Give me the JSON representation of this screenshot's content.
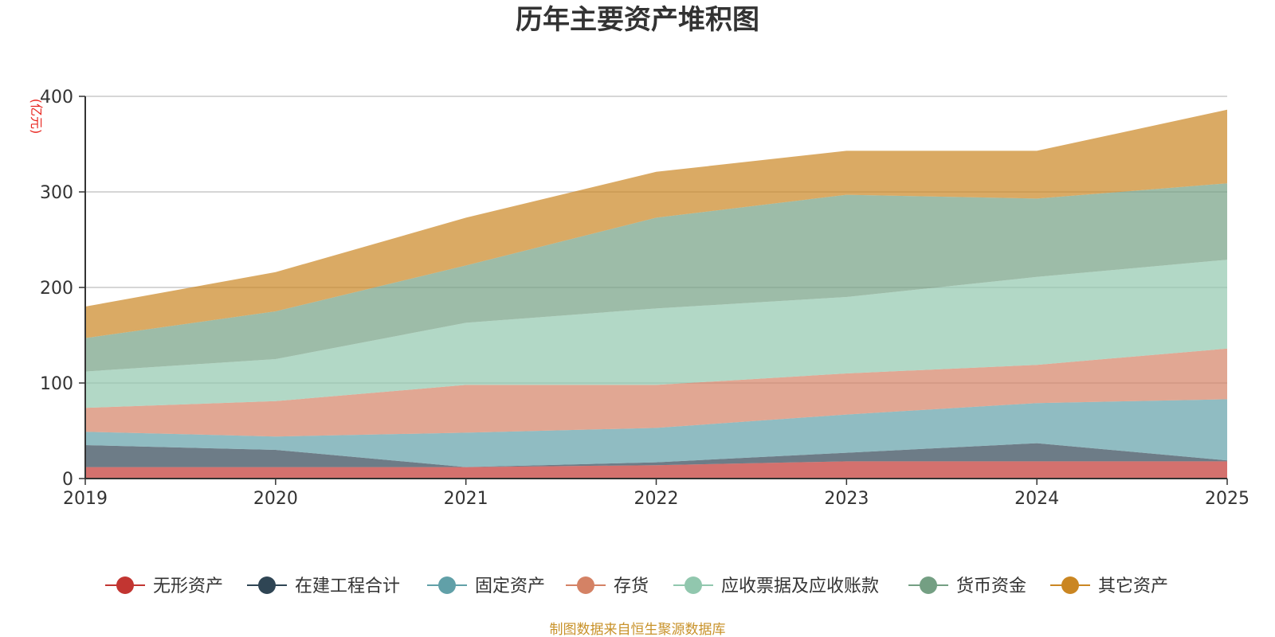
{
  "chart_data": {
    "type": "area",
    "stacked": true,
    "title": "历年主要资产堆积图",
    "unit_label": "(亿元)",
    "x": [
      "2019",
      "2020",
      "2021",
      "2022",
      "2023",
      "2024",
      "2025"
    ],
    "ylim": [
      0,
      400
    ],
    "yticks": [
      "0",
      "100",
      "200",
      "300",
      "400"
    ],
    "grid": true,
    "legend_position": "bottom",
    "series": [
      {
        "name": "无形资产",
        "color": "#c23531",
        "values": [
          12,
          12,
          12,
          14,
          18,
          18,
          18
        ]
      },
      {
        "name": "在建工程合计",
        "color": "#2f4554",
        "values": [
          23,
          18,
          0,
          3,
          9,
          19,
          1
        ]
      },
      {
        "name": "固定资产",
        "color": "#61a0a8",
        "values": [
          14,
          14,
          36,
          36,
          40,
          42,
          64
        ]
      },
      {
        "name": "存货",
        "color": "#d48265",
        "values": [
          25,
          37,
          50,
          45,
          43,
          40,
          53
        ]
      },
      {
        "name": "应收票据及应收账款",
        "color": "#91c7ae",
        "values": [
          38,
          44,
          65,
          80,
          80,
          92,
          93
        ]
      },
      {
        "name": "货币资金",
        "color": "#749f83",
        "values": [
          35,
          50,
          60,
          95,
          107,
          82,
          80
        ]
      },
      {
        "name": "其它资产",
        "color": "#ca8622",
        "values": [
          33,
          41,
          50,
          48,
          46,
          50,
          77
        ]
      }
    ],
    "source": "制图数据来自恒生聚源数据库"
  }
}
